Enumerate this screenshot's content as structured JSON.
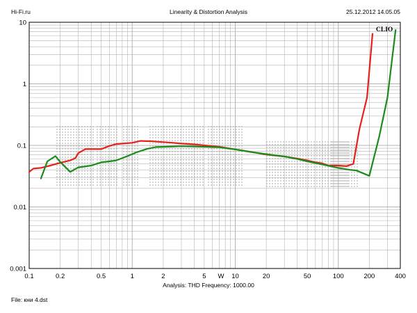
{
  "header": {
    "left": "Hi-Fi.ru",
    "center": "Linearity & Distortion Analysis",
    "right": "25.12.2012 14.05.05"
  },
  "brand_label": "CLIO",
  "footer": {
    "analysis": "Analysis: THD   Frequency: 1000.00",
    "file": "File: кни 4.dst"
  },
  "watermark": "Hi-Fi.ru",
  "colors": {
    "series_red": "#e3231b",
    "series_green": "#1a8c1a",
    "grid": "#b4b4b4",
    "frame": "#000000",
    "watermark": "#cfcfcf"
  },
  "chart_data": {
    "type": "line",
    "title": "Linearity & Distortion Analysis",
    "xlabel": "W",
    "ylabel": "",
    "x_scale": "log",
    "y_scale": "log",
    "xlim": [
      0.1,
      400
    ],
    "ylim": [
      0.001,
      10
    ],
    "grid": true,
    "x_ticks": [
      {
        "value": 0.1,
        "label": "0.1"
      },
      {
        "value": 0.2,
        "label": "0.2"
      },
      {
        "value": 0.5,
        "label": "0.5"
      },
      {
        "value": 1,
        "label": "1"
      },
      {
        "value": 2,
        "label": "2"
      },
      {
        "value": 5,
        "label": "5"
      },
      {
        "value": 10,
        "label": "10"
      },
      {
        "value": 20,
        "label": "20"
      },
      {
        "value": 50,
        "label": "50"
      },
      {
        "value": 100,
        "label": "100"
      },
      {
        "value": 200,
        "label": "200"
      },
      {
        "value": 400,
        "label": "400"
      }
    ],
    "y_ticks": [
      {
        "value": 10,
        "label": "10"
      },
      {
        "value": 1,
        "label": "1"
      },
      {
        "value": 0.1,
        "label": "0.1"
      },
      {
        "value": 0.01,
        "label": "0.01"
      },
      {
        "value": 0.001,
        "label": "0.001"
      }
    ],
    "series": [
      {
        "color": "#e3231b",
        "points": [
          [
            0.1,
            0.037
          ],
          [
            0.11,
            0.042
          ],
          [
            0.13,
            0.043
          ],
          [
            0.16,
            0.047
          ],
          [
            0.2,
            0.052
          ],
          [
            0.25,
            0.057
          ],
          [
            0.28,
            0.062
          ],
          [
            0.3,
            0.075
          ],
          [
            0.35,
            0.087
          ],
          [
            0.4,
            0.087
          ],
          [
            0.5,
            0.087
          ],
          [
            0.6,
            0.098
          ],
          [
            0.7,
            0.105
          ],
          [
            0.8,
            0.107
          ],
          [
            1.0,
            0.11
          ],
          [
            1.2,
            0.118
          ],
          [
            1.5,
            0.117
          ],
          [
            2.0,
            0.113
          ],
          [
            2.5,
            0.11
          ],
          [
            3.0,
            0.107
          ],
          [
            4.0,
            0.104
          ],
          [
            5.0,
            0.1
          ],
          [
            7.0,
            0.095
          ],
          [
            10,
            0.086
          ],
          [
            15,
            0.077
          ],
          [
            20,
            0.071
          ],
          [
            30,
            0.066
          ],
          [
            40,
            0.061
          ],
          [
            50,
            0.057
          ],
          [
            60,
            0.053
          ],
          [
            70,
            0.051
          ],
          [
            80,
            0.047
          ],
          [
            100,
            0.047
          ],
          [
            120,
            0.046
          ],
          [
            140,
            0.05
          ],
          [
            160,
            0.18
          ],
          [
            190,
            0.6
          ],
          [
            215,
            6.5
          ]
        ]
      },
      {
        "color": "#1a8c1a",
        "points": [
          [
            0.13,
            0.029
          ],
          [
            0.15,
            0.055
          ],
          [
            0.18,
            0.067
          ],
          [
            0.2,
            0.054
          ],
          [
            0.25,
            0.037
          ],
          [
            0.3,
            0.044
          ],
          [
            0.4,
            0.047
          ],
          [
            0.5,
            0.053
          ],
          [
            0.6,
            0.055
          ],
          [
            0.7,
            0.057
          ],
          [
            0.9,
            0.067
          ],
          [
            1.1,
            0.077
          ],
          [
            1.4,
            0.088
          ],
          [
            1.7,
            0.094
          ],
          [
            2.5,
            0.096
          ],
          [
            3.0,
            0.097
          ],
          [
            4.0,
            0.096
          ],
          [
            5.0,
            0.095
          ],
          [
            7.0,
            0.093
          ],
          [
            10,
            0.086
          ],
          [
            15,
            0.077
          ],
          [
            20,
            0.072
          ],
          [
            30,
            0.066
          ],
          [
            40,
            0.06
          ],
          [
            50,
            0.055
          ],
          [
            70,
            0.049
          ],
          [
            100,
            0.043
          ],
          [
            130,
            0.04
          ],
          [
            150,
            0.039
          ],
          [
            200,
            0.032
          ],
          [
            250,
            0.14
          ],
          [
            300,
            0.6
          ],
          [
            360,
            7.5
          ]
        ]
      }
    ]
  }
}
